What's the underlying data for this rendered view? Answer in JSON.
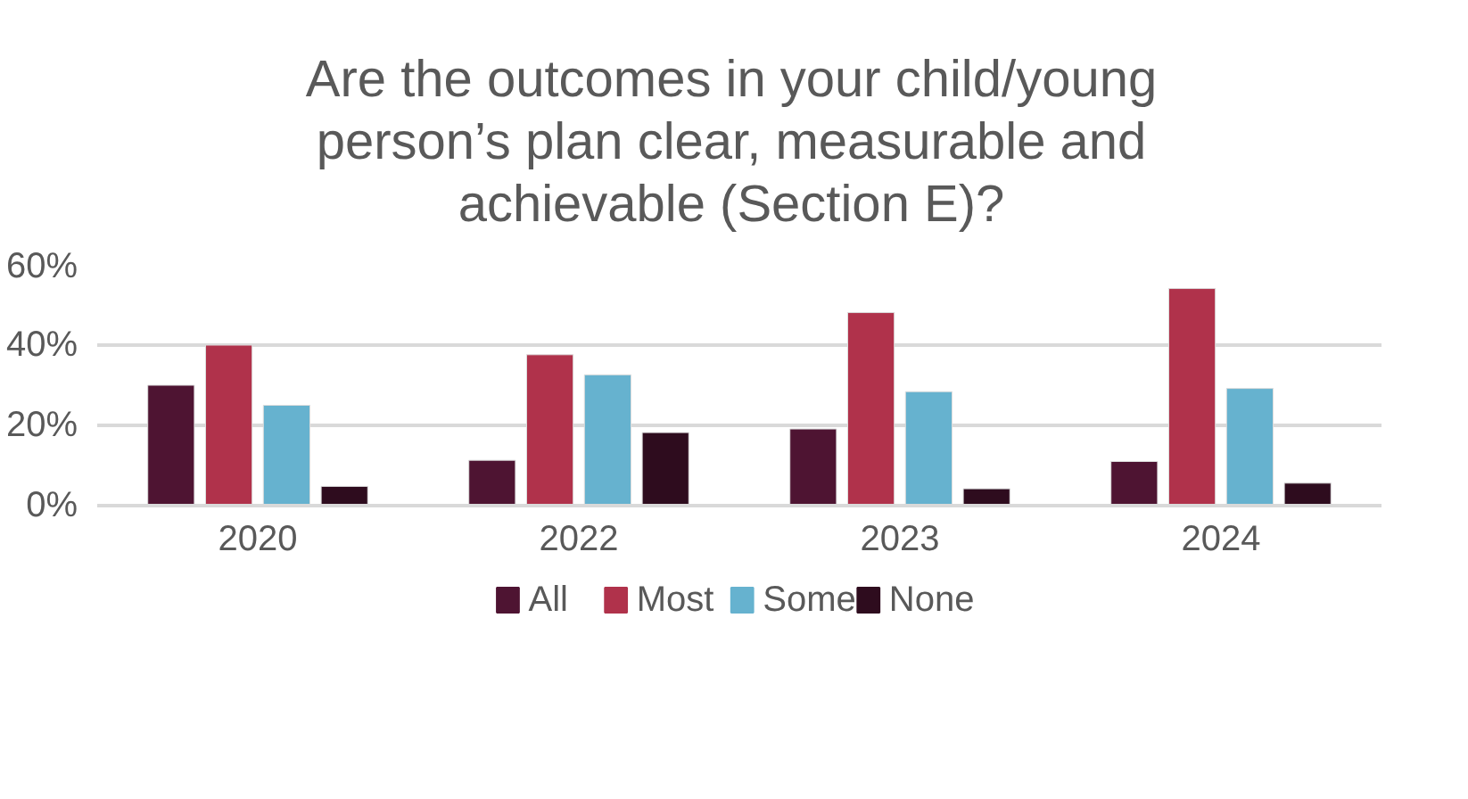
{
  "chart_data": {
    "type": "bar",
    "title": "Are the outcomes in your child/young person’s plan clear, measurable and achievable (Section E)?",
    "categories": [
      "2020",
      "2022",
      "2023",
      "2024"
    ],
    "series": [
      {
        "name": "All",
        "color": "#4e1432",
        "values": [
          30,
          11.3,
          19.1,
          11
        ]
      },
      {
        "name": "Most",
        "color": "#b0324b",
        "values": [
          40,
          37.6,
          48.1,
          54.1
        ]
      },
      {
        "name": "Some",
        "color": "#66b2cf",
        "values": [
          25,
          32.6,
          28.4,
          29.2
        ]
      },
      {
        "name": "None",
        "color": "#2e0c1e",
        "values": [
          4.8,
          18.2,
          4.2,
          5.6
        ]
      }
    ],
    "ylim": [
      0,
      60
    ],
    "yticks": [
      {
        "value": 0,
        "label": "0%"
      },
      {
        "value": 20,
        "label": "20%"
      },
      {
        "value": 40,
        "label": "40%"
      },
      {
        "value": 60,
        "label": "60%"
      }
    ],
    "grid": "y",
    "legend": "bottom"
  }
}
